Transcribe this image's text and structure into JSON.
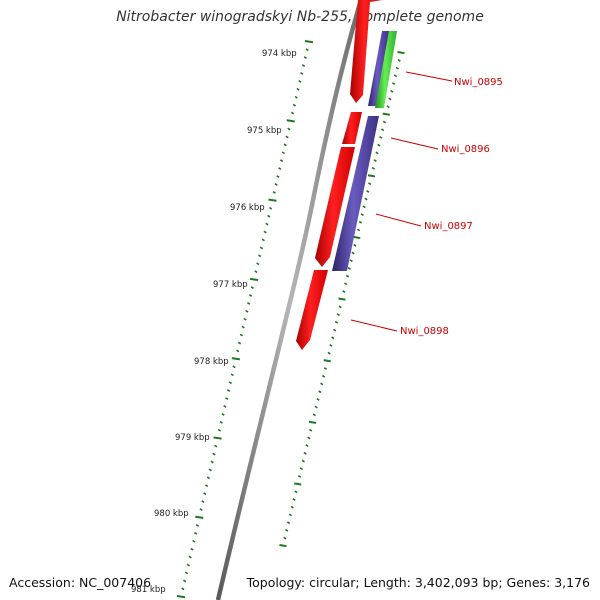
{
  "title": "Nitrobacter winogradskyi Nb-255, complete genome",
  "footer": {
    "accession": "Accession: NC_007406",
    "info": "Topology: circular; Length: 3,402,093 bp; Genes: 3,176"
  },
  "colors": {
    "forward_strand": "#ff0000",
    "reverse_strand": "#4b3f9a",
    "rna_gene": "#33cc33",
    "backbone": "#8a8a8a",
    "tick": "#1a7a1a",
    "label": "#cc0000"
  },
  "scale_labels": [
    "974 kbp",
    "975 kbp",
    "976 kbp",
    "977 kbp",
    "978 kbp",
    "979 kbp",
    "980 kbp",
    "981 kbp"
  ],
  "gene_labels": [
    "Nwi_0895",
    "Nwi_0896",
    "Nwi_0897",
    "Nwi_0898"
  ]
}
